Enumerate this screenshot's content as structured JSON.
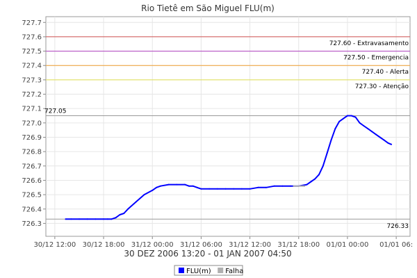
{
  "chart_data": {
    "type": "line",
    "title": "Rio Tietê em São Miguel FLU(m)",
    "xlabel": "30 DEZ 2006 13:20 - 01 JAN 2007 04:50",
    "ylabel": "",
    "ylim": [
      726.21,
      727.74
    ],
    "yticks": [
      726.3,
      726.4,
      726.5,
      726.6,
      726.7,
      726.8,
      726.9,
      727.0,
      727.1,
      727.2,
      727.3,
      727.4,
      727.5,
      727.6,
      727.7
    ],
    "ytick_labels": [
      "726.3",
      "726.4",
      "726.5",
      "726.6",
      "726.7",
      "726.8",
      "726.9",
      "727.0",
      "727.1",
      "727.2",
      "727.3",
      "727.4",
      "727.5",
      "727.6",
      "727.7"
    ],
    "xlim": [
      -1.1,
      43.7
    ],
    "xticks": [
      0,
      6,
      12,
      18,
      24,
      30,
      36,
      42
    ],
    "xtick_labels": [
      "30/12 12:00",
      "30/12 18:00",
      "31/12 00:00",
      "31/12 06:00",
      "31/12 12:00",
      "31/12 18:00",
      "01/01 00:00",
      "01/01 06:"
    ],
    "grid": true,
    "thresholds": [
      {
        "value": 727.6,
        "label": "727.60 - Extravasamento",
        "color": "#d05050"
      },
      {
        "value": 727.5,
        "label": "727.50 - Emergencia",
        "color": "#b040c0"
      },
      {
        "value": 727.4,
        "label": "727.40 - Alerta",
        "color": "#f0a030"
      },
      {
        "value": 727.3,
        "label": "727.30 - Atenção",
        "color": "#e0e050"
      }
    ],
    "reference_lines": [
      {
        "value": 727.05,
        "label": "727.05",
        "label_side": "left",
        "color": "#999999"
      },
      {
        "value": 726.33,
        "label": "726.33",
        "label_side": "right",
        "color": "#999999"
      }
    ],
    "series": [
      {
        "name": "FLU(m)",
        "color": "#0000ff",
        "x": [
          1.33,
          2,
          3,
          4,
          5,
          6,
          6.5,
          7,
          7.5,
          8,
          8.5,
          9,
          10,
          11,
          12,
          12.5,
          13,
          14,
          15,
          16,
          16.5,
          17,
          17.5,
          18,
          19,
          20,
          21,
          22,
          23,
          24,
          25,
          26,
          27,
          28,
          29,
          30,
          31,
          31.5,
          32,
          32.5,
          33,
          33.5,
          34,
          34.5,
          35,
          35.5,
          36,
          36.5,
          37,
          37.5,
          38,
          38.5,
          39,
          39.5,
          40,
          40.5,
          41,
          41.4
        ],
        "values": [
          726.33,
          726.33,
          726.33,
          726.33,
          726.33,
          726.33,
          726.33,
          726.33,
          726.34,
          726.36,
          726.37,
          726.4,
          726.45,
          726.5,
          726.53,
          726.55,
          726.56,
          726.57,
          726.57,
          726.57,
          726.56,
          726.56,
          726.55,
          726.54,
          726.54,
          726.54,
          726.54,
          726.54,
          726.54,
          726.54,
          726.55,
          726.55,
          726.56,
          726.56,
          726.56,
          726.56,
          726.57,
          726.59,
          726.61,
          726.64,
          726.7,
          726.79,
          726.88,
          726.96,
          727.01,
          727.03,
          727.05,
          727.05,
          727.04,
          727.0,
          726.98,
          726.96,
          726.94,
          726.92,
          726.9,
          726.88,
          726.86,
          726.85
        ]
      },
      {
        "name": "Falha",
        "color": "#b0b0b0",
        "segments": [
          {
            "x": [
              29.3,
              30.8
            ],
            "values": [
              726.56,
              726.56
            ]
          }
        ]
      }
    ],
    "legend": {
      "position": "bottom-center"
    }
  }
}
